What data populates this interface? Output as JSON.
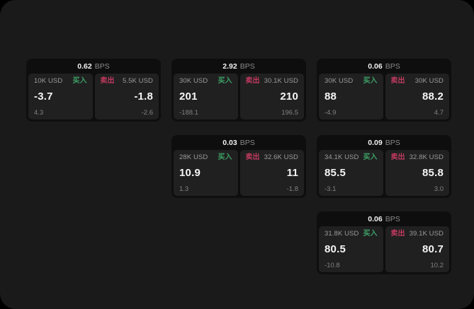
{
  "labels": {
    "bps_suffix": "BPS",
    "buy": "买入",
    "sell": "卖出"
  },
  "colors": {
    "page_bg": "#000000",
    "app_bg": "#1a1a1b",
    "card_bg": "#0e0e0e",
    "panel_bg": "#202021",
    "text_primary": "#f5f5f5",
    "text_secondary": "#8a8a8a",
    "buy_green": "#3ea065",
    "sell_red": "#c13a5e"
  },
  "cards": [
    {
      "bps": "0.62",
      "buy": {
        "amount": "10K USD",
        "value": "-3.7",
        "sub": "4.3"
      },
      "sell": {
        "amount": "5.5K USD",
        "value": "-1.8",
        "sub": "-2.6"
      }
    },
    {
      "bps": "2.92",
      "buy": {
        "amount": "30K USD",
        "value": "201",
        "sub": "-188.1"
      },
      "sell": {
        "amount": "30.1K USD",
        "value": "210",
        "sub": "196.5"
      }
    },
    {
      "bps": "0.06",
      "buy": {
        "amount": "30K USD",
        "value": "88",
        "sub": "-4.9"
      },
      "sell": {
        "amount": "30K USD",
        "value": "88.2",
        "sub": "4.7"
      }
    },
    {
      "bps": "0.03",
      "buy": {
        "amount": "28K USD",
        "value": "10.9",
        "sub": "1.3"
      },
      "sell": {
        "amount": "32.6K USD",
        "value": "11",
        "sub": "-1.8"
      }
    },
    {
      "bps": "0.09",
      "buy": {
        "amount": "34.1K USD",
        "value": "85.5",
        "sub": "-3.1"
      },
      "sell": {
        "amount": "32.8K USD",
        "value": "85.8",
        "sub": "3.0"
      }
    },
    {
      "bps": "0.06",
      "buy": {
        "amount": "31.8K USD",
        "value": "80.5",
        "sub": "-10.8"
      },
      "sell": {
        "amount": "39.1K USD",
        "value": "80.7",
        "sub": "10.2"
      }
    }
  ]
}
